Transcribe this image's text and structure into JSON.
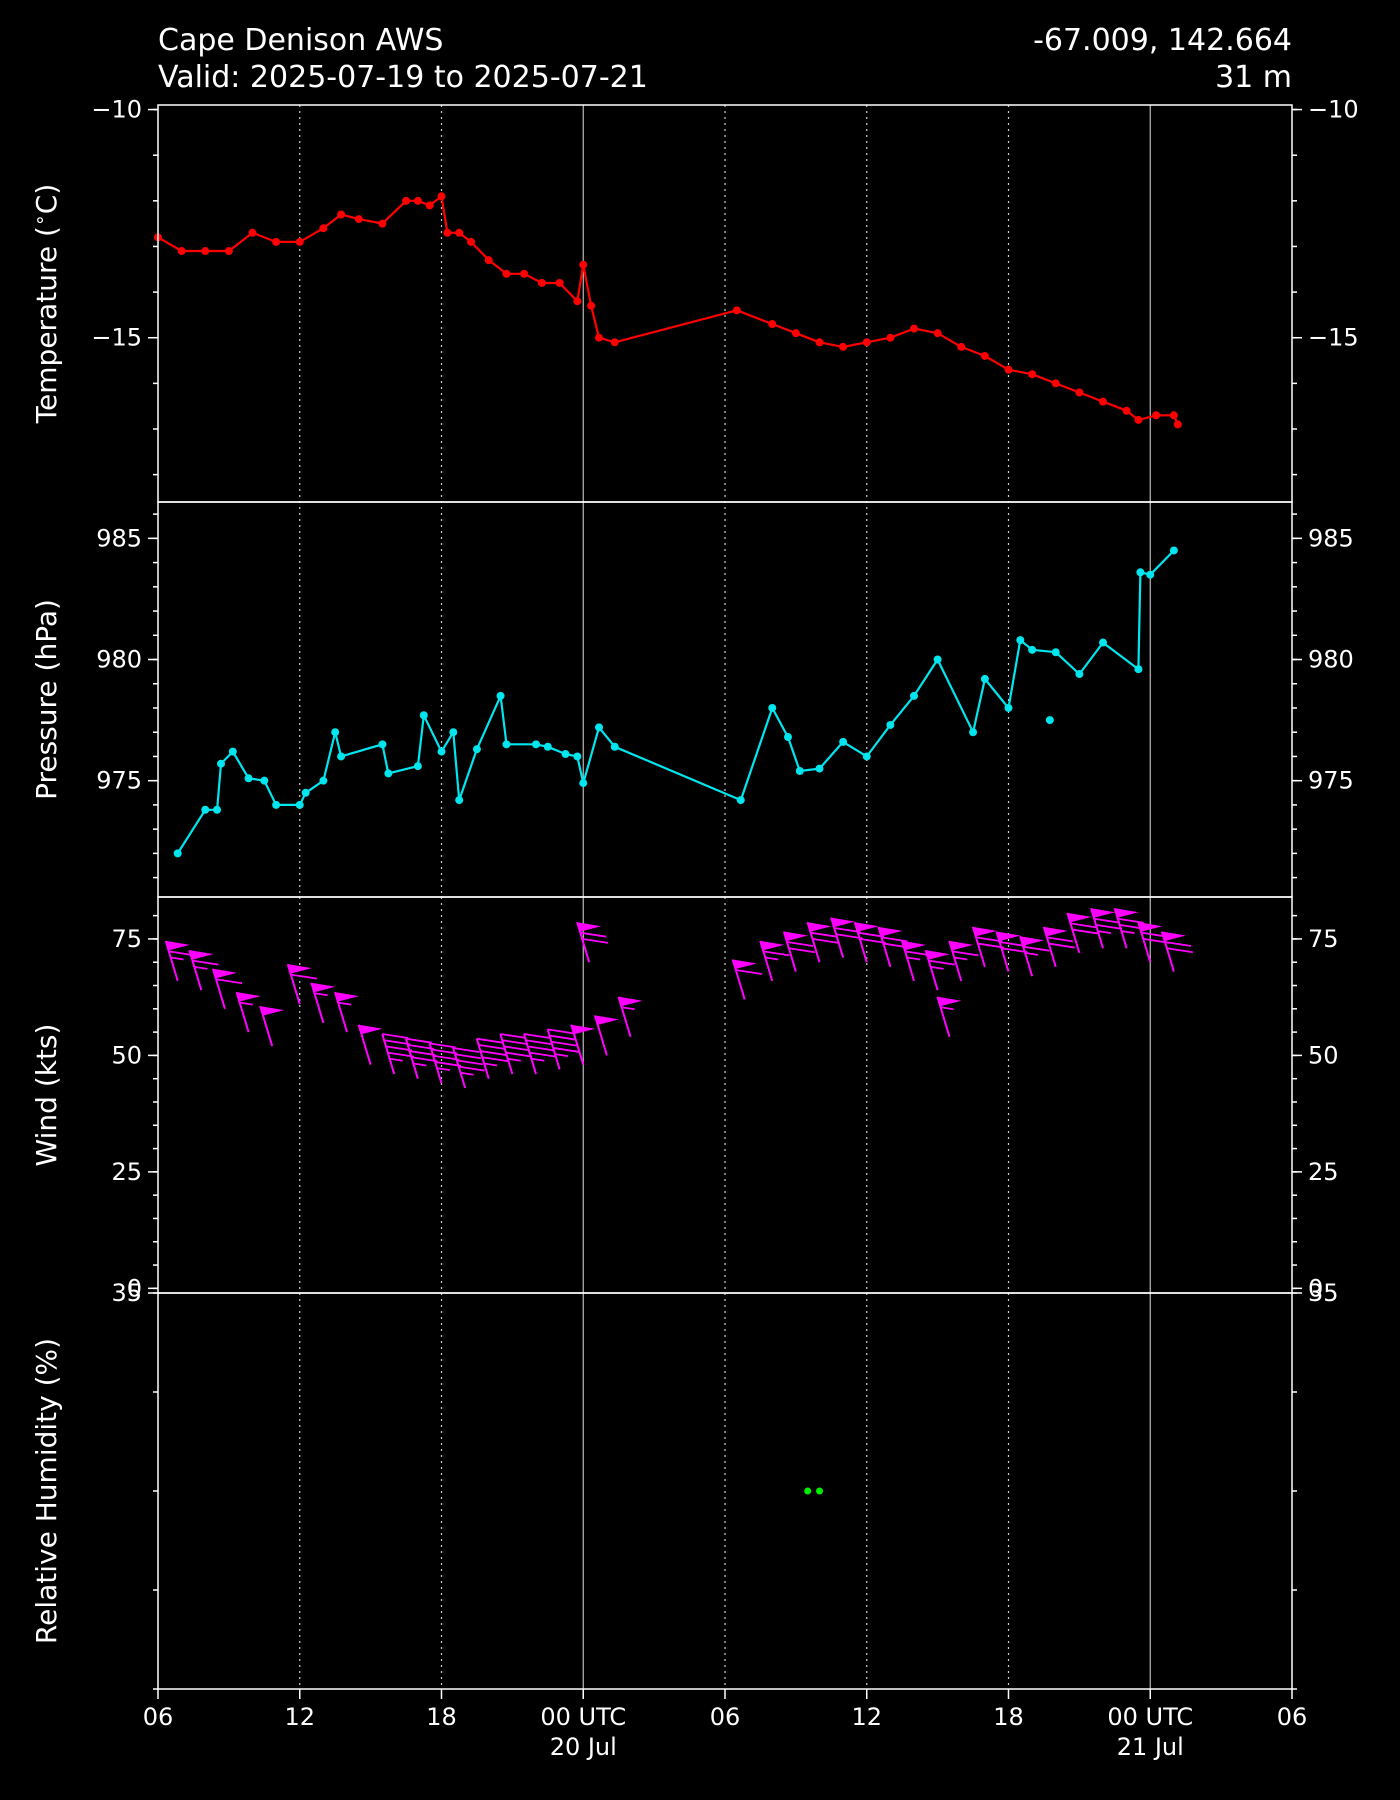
{
  "header": {
    "station": "Cape Denison AWS",
    "valid": "Valid: 2025-07-19 to 2025-07-21",
    "coords": "-67.009, 142.664",
    "elevation": "31 m"
  },
  "chart_data": {
    "type": "line",
    "x_axis": {
      "range": [
        "2025-07-19T06:00Z",
        "2025-07-21T06:00Z"
      ],
      "ticks": [
        {
          "t": "2025-07-19T06:00Z",
          "label": "06",
          "sub": ""
        },
        {
          "t": "2025-07-19T12:00Z",
          "label": "12",
          "sub": ""
        },
        {
          "t": "2025-07-19T18:00Z",
          "label": "18",
          "sub": ""
        },
        {
          "t": "2025-07-20T00:00Z",
          "label": "00 UTC",
          "sub": "20 Jul"
        },
        {
          "t": "2025-07-20T06:00Z",
          "label": "06",
          "sub": ""
        },
        {
          "t": "2025-07-20T12:00Z",
          "label": "12",
          "sub": ""
        },
        {
          "t": "2025-07-20T18:00Z",
          "label": "18",
          "sub": ""
        },
        {
          "t": "2025-07-21T00:00Z",
          "label": "00 UTC",
          "sub": "21 Jul"
        },
        {
          "t": "2025-07-21T06:00Z",
          "label": "06",
          "sub": ""
        }
      ],
      "major_gridlines": [
        "2025-07-20T00:00Z",
        "2025-07-21T00:00Z"
      ],
      "minor_gridlines": [
        "2025-07-19T12:00Z",
        "2025-07-19T18:00Z",
        "2025-07-20T06:00Z",
        "2025-07-20T12:00Z",
        "2025-07-20T18:00Z"
      ]
    },
    "panels": [
      {
        "id": "temperature",
        "ylabel": "Temperature ($^\\circ$C)",
        "ylim": [
          -18.6,
          -9.9
        ],
        "yticks": [
          -10,
          -15
        ],
        "ytick_labels": [
          "−10",
          "−15"
        ],
        "minor_step": 1,
        "color": "#ff0000",
        "series": [
          [
            "2025-07-19T06:00Z",
            -12.8
          ],
          [
            "2025-07-19T07:00Z",
            -13.1
          ],
          [
            "2025-07-19T08:00Z",
            -13.1
          ],
          [
            "2025-07-19T09:00Z",
            -13.1
          ],
          [
            "2025-07-19T10:00Z",
            -12.7
          ],
          [
            "2025-07-19T11:00Z",
            -12.9
          ],
          [
            "2025-07-19T12:00Z",
            -12.9
          ],
          [
            "2025-07-19T13:00Z",
            -12.6
          ],
          [
            "2025-07-19T13:45Z",
            -12.3
          ],
          [
            "2025-07-19T14:30Z",
            -12.4
          ],
          [
            "2025-07-19T15:30Z",
            -12.5
          ],
          [
            "2025-07-19T16:30Z",
            -12.0
          ],
          [
            "2025-07-19T17:00Z",
            -12.0
          ],
          [
            "2025-07-19T17:30Z",
            -12.1
          ],
          [
            "2025-07-19T18:00Z",
            -11.9
          ],
          [
            "2025-07-19T18:15Z",
            -12.7
          ],
          [
            "2025-07-19T18:45Z",
            -12.7
          ],
          [
            "2025-07-19T19:15Z",
            -12.9
          ],
          [
            "2025-07-19T20:00Z",
            -13.3
          ],
          [
            "2025-07-19T20:45Z",
            -13.6
          ],
          [
            "2025-07-19T21:30Z",
            -13.6
          ],
          [
            "2025-07-19T22:15Z",
            -13.8
          ],
          [
            "2025-07-19T23:00Z",
            -13.8
          ],
          [
            "2025-07-19T23:45Z",
            -14.2
          ],
          [
            "2025-07-20T00:00Z",
            -13.4
          ],
          [
            "2025-07-20T00:20Z",
            -14.3
          ],
          [
            "2025-07-20T00:40Z",
            -15.0
          ],
          [
            "2025-07-20T01:20Z",
            -15.1
          ],
          [
            "2025-07-20T06:30Z",
            -14.4
          ],
          [
            "2025-07-20T08:00Z",
            -14.7
          ],
          [
            "2025-07-20T09:00Z",
            -14.9
          ],
          [
            "2025-07-20T10:00Z",
            -15.1
          ],
          [
            "2025-07-20T11:00Z",
            -15.2
          ],
          [
            "2025-07-20T12:00Z",
            -15.1
          ],
          [
            "2025-07-20T13:00Z",
            -15.0
          ],
          [
            "2025-07-20T14:00Z",
            -14.8
          ],
          [
            "2025-07-20T15:00Z",
            -14.9
          ],
          [
            "2025-07-20T16:00Z",
            -15.2
          ],
          [
            "2025-07-20T17:00Z",
            -15.4
          ],
          [
            "2025-07-20T18:00Z",
            -15.7
          ],
          [
            "2025-07-20T19:00Z",
            -15.8
          ],
          [
            "2025-07-20T20:00Z",
            -16.0
          ],
          [
            "2025-07-20T21:00Z",
            -16.2
          ],
          [
            "2025-07-20T22:00Z",
            -16.4
          ],
          [
            "2025-07-20T23:00Z",
            -16.6
          ],
          [
            "2025-07-20T23:30Z",
            -16.8
          ],
          [
            "2025-07-21T00:15Z",
            -16.7
          ],
          [
            "2025-07-21T01:00Z",
            -16.7
          ],
          [
            "2025-07-21T01:10Z",
            -16.9
          ]
        ]
      },
      {
        "id": "pressure",
        "ylabel": "Pressure (hPa)",
        "ylim": [
          970.2,
          986.5
        ],
        "yticks": [
          975,
          980,
          985
        ],
        "ytick_labels": [
          "975",
          "980",
          "985"
        ],
        "minor_step": 1,
        "color": "#00e5ee",
        "series": [
          [
            "2025-07-19T06:50Z",
            972.0
          ],
          [
            "2025-07-19T08:00Z",
            973.8
          ],
          [
            "2025-07-19T08:30Z",
            973.8
          ],
          [
            "2025-07-19T08:40Z",
            975.7
          ],
          [
            "2025-07-19T09:10Z",
            976.2
          ],
          [
            "2025-07-19T09:50Z",
            975.1
          ],
          [
            "2025-07-19T10:30Z",
            975.0
          ],
          [
            "2025-07-19T11:00Z",
            974.0
          ],
          [
            "2025-07-19T12:00Z",
            974.0
          ],
          [
            "2025-07-19T12:15Z",
            974.5
          ],
          [
            "2025-07-19T13:00Z",
            975.0
          ],
          [
            "2025-07-19T13:30Z",
            977.0
          ],
          [
            "2025-07-19T13:45Z",
            976.0
          ],
          [
            "2025-07-19T15:30Z",
            976.5
          ],
          [
            "2025-07-19T15:45Z",
            975.3
          ],
          [
            "2025-07-19T17:00Z",
            975.6
          ],
          [
            "2025-07-19T17:15Z",
            977.7
          ],
          [
            "2025-07-19T18:00Z",
            976.2
          ],
          [
            "2025-07-19T18:30Z",
            977.0
          ],
          [
            "2025-07-19T18:45Z",
            974.2
          ],
          [
            "2025-07-19T19:30Z",
            976.3
          ],
          [
            "2025-07-19T20:30Z",
            978.5
          ],
          [
            "2025-07-19T20:45Z",
            976.5
          ],
          [
            "2025-07-19T22:00Z",
            976.5
          ],
          [
            "2025-07-19T22:30Z",
            976.4
          ],
          [
            "2025-07-19T23:15Z",
            976.1
          ],
          [
            "2025-07-19T23:45Z",
            976.0
          ],
          [
            "2025-07-20T00:00Z",
            974.9
          ],
          [
            "2025-07-20T00:40Z",
            977.2
          ],
          [
            "2025-07-20T01:20Z",
            976.4
          ],
          [
            "2025-07-20T06:40Z",
            974.2
          ],
          [
            "2025-07-20T08:00Z",
            978.0
          ],
          [
            "2025-07-20T08:40Z",
            976.8
          ],
          [
            "2025-07-20T09:10Z",
            975.4
          ],
          [
            "2025-07-20T10:00Z",
            975.5
          ],
          [
            "2025-07-20T11:00Z",
            976.6
          ],
          [
            "2025-07-20T12:00Z",
            976.0
          ],
          [
            "2025-07-20T13:00Z",
            977.3
          ],
          [
            "2025-07-20T14:00Z",
            978.5
          ],
          [
            "2025-07-20T15:00Z",
            980.0
          ],
          [
            "2025-07-20T16:30Z",
            977.0
          ],
          [
            "2025-07-20T17:00Z",
            979.2
          ],
          [
            "2025-07-20T18:00Z",
            978.0
          ],
          [
            "2025-07-20T18:30Z",
            980.8
          ],
          [
            "2025-07-20T19:00Z",
            980.4
          ],
          [
            "2025-07-20T20:00Z",
            980.3
          ],
          [
            "2025-07-20T21:00Z",
            979.4
          ],
          [
            "2025-07-20T22:00Z",
            980.7
          ],
          [
            "2025-07-20T23:30Z",
            979.6
          ],
          [
            "2025-07-20T23:35Z",
            983.6
          ],
          [
            "2025-07-21T00:00Z",
            983.5
          ],
          [
            "2025-07-21T01:00Z",
            984.5
          ]
        ],
        "isolated_points": [
          [
            "2025-07-20T19:45Z",
            977.5
          ]
        ]
      },
      {
        "id": "wind",
        "ylabel": "Wind (kts)",
        "ylim": [
          -1,
          84
        ],
        "yticks": [
          0,
          25,
          50,
          75
        ],
        "ytick_labels": [
          "0",
          "25",
          "50",
          "75"
        ],
        "minor_step": 5,
        "color": "#ff00ff",
        "barbs": [
          [
            "2025-07-19T06:50Z",
            66
          ],
          [
            "2025-07-19T07:50Z",
            64
          ],
          [
            "2025-07-19T08:50Z",
            60
          ],
          [
            "2025-07-19T09:50Z",
            55
          ],
          [
            "2025-07-19T10:50Z",
            52
          ],
          [
            "2025-07-19T12:00Z",
            61
          ],
          [
            "2025-07-19T13:00Z",
            57
          ],
          [
            "2025-07-19T14:00Z",
            55
          ],
          [
            "2025-07-19T15:00Z",
            48
          ],
          [
            "2025-07-19T16:00Z",
            46
          ],
          [
            "2025-07-19T17:00Z",
            45
          ],
          [
            "2025-07-19T18:00Z",
            44
          ],
          [
            "2025-07-19T19:00Z",
            43
          ],
          [
            "2025-07-19T20:00Z",
            45
          ],
          [
            "2025-07-19T21:00Z",
            46
          ],
          [
            "2025-07-19T22:00Z",
            46
          ],
          [
            "2025-07-19T23:00Z",
            47
          ],
          [
            "2025-07-20T00:00Z",
            48
          ],
          [
            "2025-07-20T01:00Z",
            50
          ],
          [
            "2025-07-20T02:00Z",
            54
          ],
          [
            "2025-07-20T00:15Z",
            70
          ],
          [
            "2025-07-20T06:50Z",
            62
          ],
          [
            "2025-07-20T08:00Z",
            66
          ],
          [
            "2025-07-20T09:00Z",
            68
          ],
          [
            "2025-07-20T10:00Z",
            70
          ],
          [
            "2025-07-20T11:00Z",
            71
          ],
          [
            "2025-07-20T12:00Z",
            70
          ],
          [
            "2025-07-20T13:00Z",
            69
          ],
          [
            "2025-07-20T14:00Z",
            66
          ],
          [
            "2025-07-20T15:00Z",
            64
          ],
          [
            "2025-07-20T15:30Z",
            54
          ],
          [
            "2025-07-20T16:00Z",
            66
          ],
          [
            "2025-07-20T17:00Z",
            69
          ],
          [
            "2025-07-20T18:00Z",
            68
          ],
          [
            "2025-07-20T19:00Z",
            67
          ],
          [
            "2025-07-20T20:00Z",
            69
          ],
          [
            "2025-07-20T21:00Z",
            72
          ],
          [
            "2025-07-20T22:00Z",
            73
          ],
          [
            "2025-07-20T23:00Z",
            73
          ],
          [
            "2025-07-21T00:00Z",
            70
          ],
          [
            "2025-07-21T01:00Z",
            68
          ]
        ]
      },
      {
        "id": "humidity",
        "ylabel": "Relative Humidity (%)",
        "ylim": [
          0,
          35
        ],
        "yticks": [
          35
        ],
        "ytick_labels": [
          "35"
        ],
        "minor_step": 8.75,
        "color": "#00ee00",
        "points": [
          [
            "2025-07-20T09:30Z",
            17.5
          ],
          [
            "2025-07-20T10:00Z",
            17.5
          ]
        ]
      }
    ]
  }
}
